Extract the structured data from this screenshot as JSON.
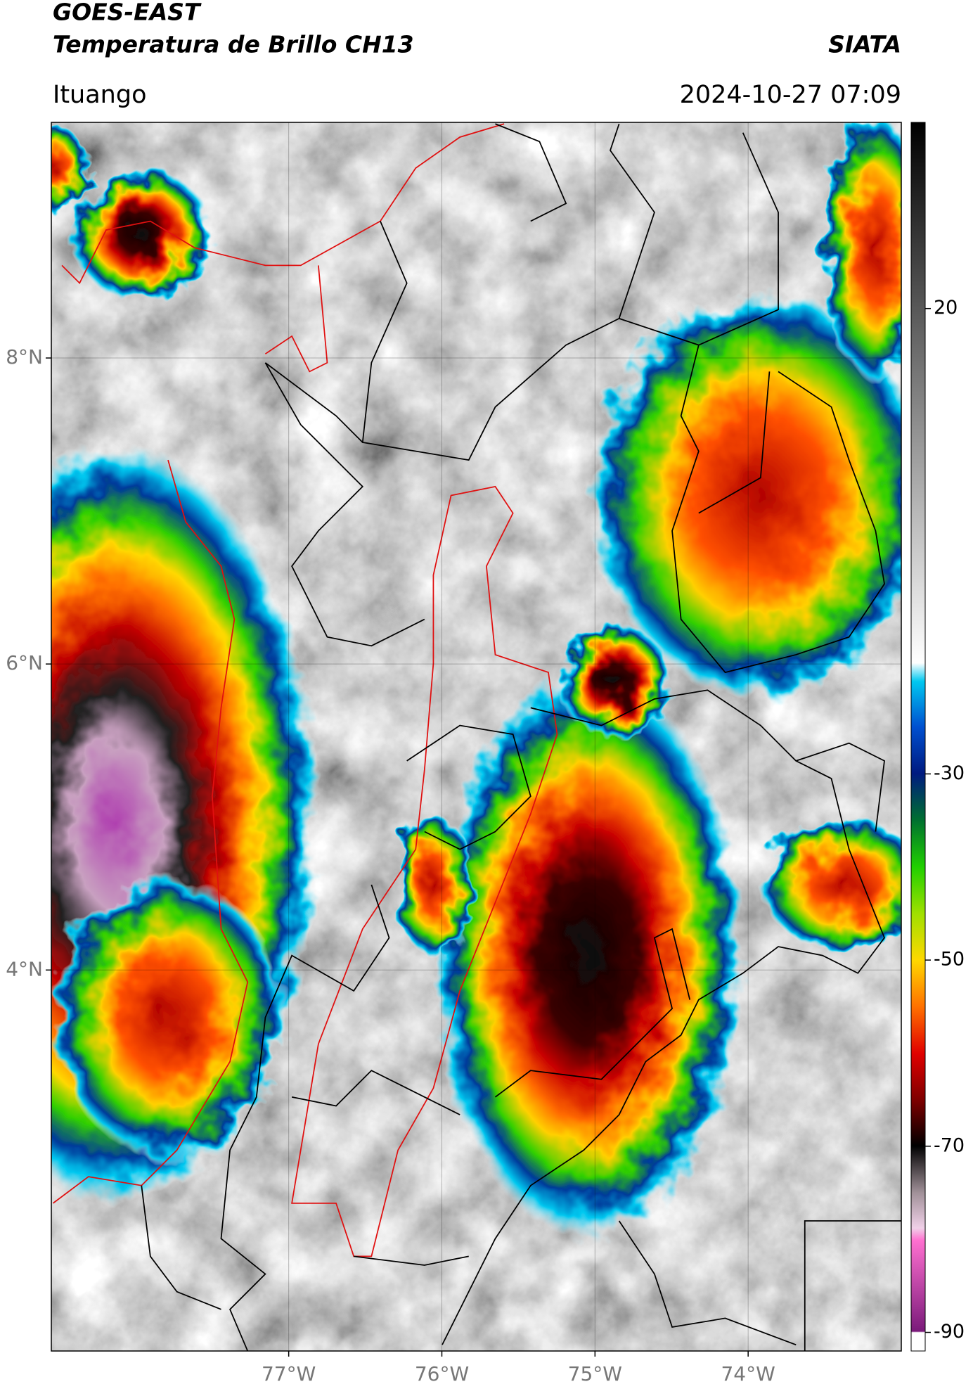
{
  "header": {
    "title": "GOES-EAST",
    "subtitle": "Temperatura de Brillo CH13",
    "brand": "SIATA",
    "location": "Ituango",
    "datetime": "2024-10-27 07:09"
  },
  "chart_data": {
    "type": "map",
    "xlim": [
      -78.55,
      -73.0
    ],
    "ylim": [
      1.51,
      9.54
    ],
    "xticks": [
      {
        "value": -77,
        "label": "77°W"
      },
      {
        "value": -76,
        "label": "76°W"
      },
      {
        "value": -75,
        "label": "75°W"
      },
      {
        "value": -74,
        "label": "74°W"
      }
    ],
    "yticks": [
      {
        "value": 4,
        "label": "4°N"
      },
      {
        "value": 6,
        "label": "6°N"
      },
      {
        "value": 8,
        "label": "8°N"
      }
    ],
    "grid": true,
    "colorbar": {
      "lim": [
        -92,
        40
      ],
      "ticks": [
        -90,
        -70,
        -50,
        -30,
        20
      ]
    }
  }
}
